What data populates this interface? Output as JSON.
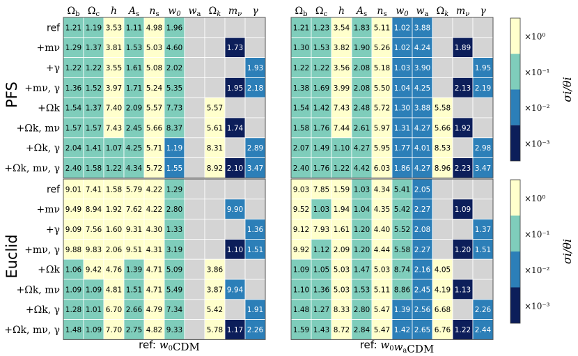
{
  "chart_data": {
    "type": "heatmap",
    "columns": [
      "Ωb",
      "Ωc",
      "h",
      "As",
      "ns",
      "w0",
      "wa",
      "Ωk",
      "mν",
      "γ"
    ],
    "rows": [
      "ref",
      "+mν",
      "+γ",
      "+mν, γ",
      "+Ωk",
      "+Ωk, mν",
      "+Ωk, γ",
      "+Ωk, mν, γ"
    ],
    "colorbar": {
      "label": "σi/θi",
      "levels": [
        "×10⁻³",
        "×10⁻²",
        "×10⁻¹",
        "×10⁰"
      ],
      "colors": [
        "#ffffcc",
        "#7fcdbb",
        "#2c7fb8",
        "#0c1e5a"
      ]
    },
    "surveys": [
      "PFS",
      "Euclid"
    ],
    "captions": [
      "ref: w0CDM",
      "ref: w0waCDM"
    ],
    "panels": [
      {
        "survey": "PFS",
        "ref": "w0CDM",
        "values": [
          [
            1.21,
            1.19,
            3.53,
            1.11,
            4.98,
            1.96,
            null,
            null,
            null,
            null
          ],
          [
            1.29,
            1.37,
            3.81,
            1.53,
            5.03,
            4.6,
            null,
            null,
            1.73,
            null
          ],
          [
            1.22,
            1.22,
            3.55,
            1.61,
            5.08,
            2.02,
            null,
            null,
            null,
            1.93
          ],
          [
            1.36,
            1.52,
            3.97,
            1.71,
            5.24,
            5.35,
            null,
            null,
            1.95,
            2.18
          ],
          [
            1.54,
            1.37,
            7.4,
            2.09,
            5.57,
            7.73,
            null,
            5.57,
            null,
            null
          ],
          [
            1.57,
            1.57,
            7.43,
            2.45,
            5.66,
            8.37,
            null,
            5.61,
            1.74,
            null
          ],
          [
            2.04,
            1.41,
            1.07,
            4.25,
            5.71,
            1.19,
            null,
            8.31,
            null,
            2.89
          ],
          [
            2.4,
            1.58,
            1.22,
            4.34,
            5.72,
            1.55,
            null,
            8.92,
            2.1,
            3.47
          ]
        ],
        "levels": [
          [
            2,
            2,
            3,
            2,
            3,
            2,
            null,
            null,
            null,
            null
          ],
          [
            2,
            2,
            3,
            2,
            3,
            2,
            null,
            null,
            0,
            null
          ],
          [
            2,
            2,
            3,
            2,
            3,
            2,
            null,
            null,
            null,
            1
          ],
          [
            2,
            2,
            3,
            2,
            3,
            2,
            null,
            null,
            0,
            1
          ],
          [
            2,
            2,
            3,
            2,
            3,
            2,
            null,
            3,
            null,
            null
          ],
          [
            2,
            2,
            3,
            2,
            3,
            2,
            null,
            3,
            0,
            null
          ],
          [
            2,
            2,
            2,
            2,
            3,
            1,
            null,
            3,
            null,
            1
          ],
          [
            2,
            2,
            2,
            2,
            3,
            1,
            null,
            3,
            0,
            1
          ]
        ]
      },
      {
        "survey": "PFS",
        "ref": "w0waCDM",
        "values": [
          [
            1.21,
            1.23,
            3.54,
            1.83,
            5.11,
            1.02,
            3.88,
            null,
            null,
            null
          ],
          [
            1.3,
            1.53,
            3.82,
            1.9,
            5.26,
            1.02,
            4.24,
            null,
            1.89,
            null
          ],
          [
            1.22,
            1.22,
            3.56,
            2.08,
            5.18,
            1.03,
            3.9,
            null,
            null,
            1.95
          ],
          [
            1.38,
            1.69,
            3.99,
            2.08,
            5.5,
            1.04,
            4.25,
            null,
            2.13,
            2.19
          ],
          [
            1.54,
            1.42,
            7.43,
            2.48,
            5.72,
            1.3,
            3.88,
            5.58,
            null,
            null
          ],
          [
            1.58,
            1.76,
            7.44,
            2.61,
            5.97,
            1.31,
            4.27,
            5.66,
            1.92,
            null
          ],
          [
            2.07,
            1.49,
            1.1,
            4.27,
            5.95,
            1.77,
            4.01,
            8.53,
            null,
            2.98
          ],
          [
            2.4,
            1.76,
            1.22,
            4.42,
            6.03,
            1.86,
            4.27,
            8.96,
            2.23,
            3.47
          ]
        ],
        "levels": [
          [
            2,
            2,
            3,
            2,
            3,
            1,
            1,
            null,
            null,
            null
          ],
          [
            2,
            2,
            3,
            2,
            3,
            1,
            1,
            null,
            0,
            null
          ],
          [
            2,
            2,
            3,
            2,
            3,
            1,
            1,
            null,
            null,
            1
          ],
          [
            2,
            2,
            3,
            2,
            3,
            1,
            1,
            null,
            0,
            1
          ],
          [
            2,
            2,
            3,
            2,
            3,
            1,
            1,
            3,
            null,
            null
          ],
          [
            2,
            2,
            3,
            2,
            3,
            1,
            1,
            3,
            0,
            null
          ],
          [
            2,
            2,
            2,
            2,
            3,
            1,
            1,
            3,
            null,
            1
          ],
          [
            2,
            2,
            2,
            2,
            3,
            1,
            1,
            3,
            0,
            1
          ]
        ]
      },
      {
        "survey": "Euclid",
        "ref": "w0CDM",
        "values": [
          [
            9.01,
            7.41,
            1.58,
            5.79,
            4.22,
            1.29,
            null,
            null,
            null,
            null
          ],
          [
            9.49,
            8.94,
            1.92,
            7.62,
            4.22,
            2.8,
            null,
            null,
            9.9,
            null
          ],
          [
            9.09,
            7.56,
            1.6,
            9.31,
            4.3,
            1.33,
            null,
            null,
            null,
            1.36
          ],
          [
            9.88,
            9.83,
            2.06,
            9.51,
            4.31,
            3.19,
            null,
            null,
            1.1,
            1.51
          ],
          [
            1.06,
            9.42,
            4.76,
            1.39,
            4.71,
            5.09,
            null,
            3.86,
            null,
            null
          ],
          [
            1.09,
            1.09,
            4.81,
            1.51,
            4.71,
            5.49,
            null,
            3.87,
            9.94,
            null
          ],
          [
            1.28,
            1.01,
            6.7,
            2.66,
            4.79,
            7.34,
            null,
            5.42,
            null,
            1.91
          ],
          [
            1.48,
            1.09,
            7.7,
            2.75,
            4.82,
            9.33,
            null,
            5.78,
            1.17,
            2.26
          ]
        ],
        "levels": [
          [
            3,
            3,
            3,
            3,
            3,
            2,
            null,
            null,
            null,
            null
          ],
          [
            3,
            3,
            3,
            3,
            3,
            2,
            null,
            null,
            1,
            null
          ],
          [
            3,
            3,
            3,
            3,
            3,
            2,
            null,
            null,
            null,
            1
          ],
          [
            3,
            3,
            3,
            3,
            3,
            2,
            null,
            null,
            0,
            1
          ],
          [
            2,
            3,
            3,
            2,
            3,
            2,
            null,
            3,
            null,
            null
          ],
          [
            2,
            2,
            3,
            2,
            3,
            2,
            null,
            3,
            1,
            null
          ],
          [
            2,
            2,
            3,
            2,
            3,
            2,
            null,
            3,
            null,
            1
          ],
          [
            2,
            2,
            3,
            2,
            3,
            2,
            null,
            3,
            0,
            1
          ]
        ]
      },
      {
        "survey": "Euclid",
        "ref": "w0waCDM",
        "values": [
          [
            9.03,
            7.85,
            1.59,
            1.03,
            4.34,
            5.41,
            2.05,
            null,
            null,
            null
          ],
          [
            9.52,
            1.03,
            1.94,
            1.04,
            4.35,
            5.42,
            2.27,
            null,
            1.09,
            null
          ],
          [
            9.12,
            7.93,
            1.61,
            1.2,
            4.4,
            5.52,
            2.08,
            null,
            null,
            1.37
          ],
          [
            9.92,
            1.12,
            2.09,
            1.2,
            4.44,
            5.58,
            2.27,
            null,
            1.2,
            1.51
          ],
          [
            1.09,
            1.05,
            5.03,
            1.47,
            5.03,
            8.74,
            2.16,
            4.05,
            null,
            null
          ],
          [
            1.1,
            1.36,
            5.03,
            1.53,
            5.11,
            8.86,
            2.45,
            4.19,
            1.13,
            null
          ],
          [
            1.48,
            1.27,
            8.33,
            2.8,
            5.47,
            1.39,
            2.56,
            6.68,
            null,
            2.26
          ],
          [
            1.59,
            1.43,
            8.72,
            2.84,
            5.47,
            1.42,
            2.65,
            6.76,
            1.22,
            2.44
          ]
        ],
        "levels": [
          [
            3,
            3,
            3,
            2,
            3,
            2,
            1,
            null,
            null,
            null
          ],
          [
            3,
            2,
            3,
            2,
            3,
            2,
            1,
            null,
            0,
            null
          ],
          [
            3,
            3,
            3,
            2,
            3,
            2,
            1,
            null,
            null,
            1
          ],
          [
            3,
            2,
            3,
            2,
            3,
            2,
            1,
            null,
            0,
            1
          ],
          [
            2,
            2,
            3,
            2,
            3,
            2,
            1,
            3,
            null,
            null
          ],
          [
            2,
            2,
            3,
            2,
            3,
            2,
            1,
            3,
            0,
            null
          ],
          [
            2,
            2,
            3,
            2,
            3,
            1,
            1,
            3,
            null,
            1
          ],
          [
            2,
            2,
            3,
            2,
            3,
            1,
            1,
            3,
            0,
            1
          ]
        ]
      }
    ]
  }
}
